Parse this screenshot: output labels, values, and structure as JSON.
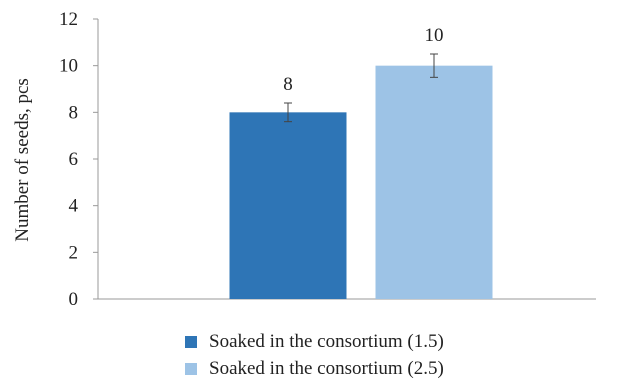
{
  "chart_data": {
    "type": "bar",
    "ylabel": "Number of seeds, pcs",
    "xlabel": "",
    "ylim": [
      0,
      12
    ],
    "yticks": [
      0,
      2,
      4,
      6,
      8,
      10,
      12
    ],
    "grid": false,
    "legend_position": "bottom",
    "series": [
      {
        "name": "Soaked in the consortium (1.5)",
        "value": 8,
        "error": 0.4,
        "label": "8",
        "color": "#2e75b6"
      },
      {
        "name": "Soaked in the consortium (2.5)",
        "value": 10,
        "error": 0.5,
        "label": "10",
        "color": "#9dc3e6"
      }
    ]
  }
}
